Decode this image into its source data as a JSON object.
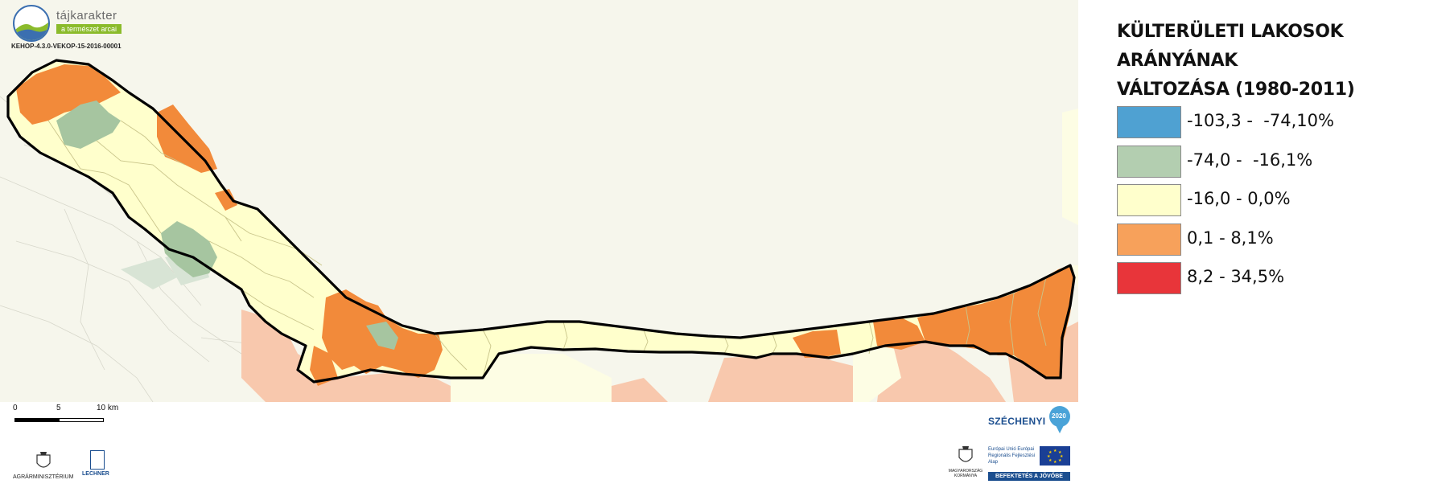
{
  "header": {
    "logo_name": "tájkarakter",
    "logo_tagline": "a természet arcai",
    "project_code": "KEHOP-4.3.0-VEKOP-15-2016-00001"
  },
  "legend": {
    "title_line1": "KÜLTERÜLETI LAKOSOK ARÁNYÁNAK",
    "title_line2": "VÁLTOZÁSA (1980-2011)",
    "classes": [
      {
        "label": "-103,3 -  -74,10%",
        "color": "#4fa1d2"
      },
      {
        "label": "-74,0 -  -16,1%",
        "color": "#b3ceb0"
      },
      {
        "label": "-16,0 - 0,0%",
        "color": "#ffffcc"
      },
      {
        "label": "0,1 - 8,1%",
        "color": "#f7a15b"
      },
      {
        "label": "8,2 - 34,5%",
        "color": "#e8353a"
      }
    ]
  },
  "map": {
    "colors": {
      "background_land": "#f4f4ea",
      "neighbor_light_orange": "#f8c8ad",
      "neighbor_light_yellow": "#fdfde4",
      "neighbor_light_green": "#d8e4d5",
      "orange": "#f28a3a",
      "green": "#a6c5a0",
      "yellow": "#ffffcc",
      "boundary": "#000000"
    }
  },
  "scalebar": {
    "labels": [
      "0",
      "5",
      "10 km"
    ]
  },
  "footer": {
    "ministry_label": "AGRÁRMINISZTÉRIUM",
    "lechner_label": "LECHNER",
    "szechenyi_label": "SZÉCHENYI",
    "szechenyi_year": "2020",
    "government_label": "MAGYARORSZÁG KORMÁNYA",
    "eu_text": "Európai Unió Európai Regionális Fejlesztési Alap",
    "eu_slogan": "BEFEKTETÉS A JÖVŐBE"
  }
}
